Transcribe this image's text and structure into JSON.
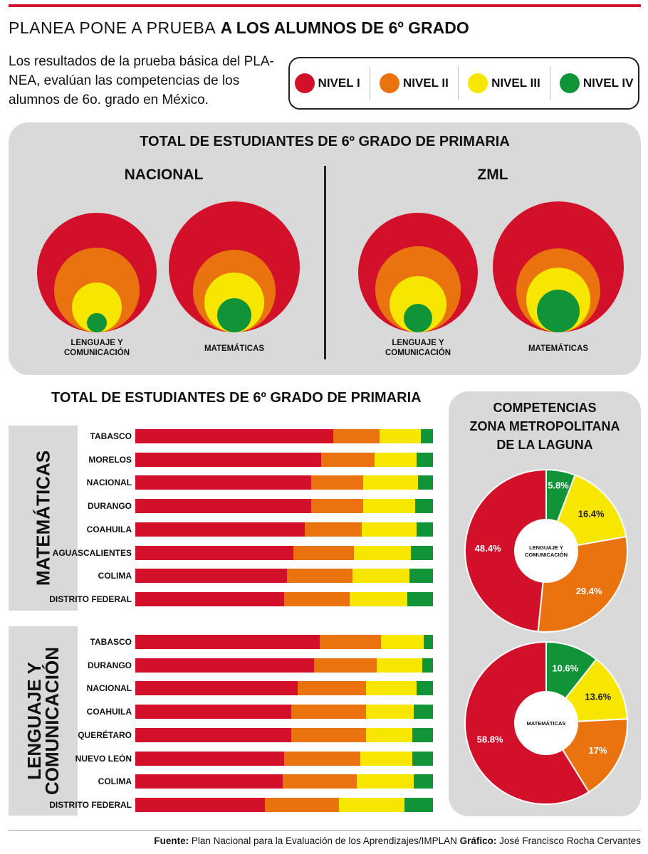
{
  "header": {
    "headline_light": "PLANEA PONE A PRUEBA",
    "headline_bold": "A LOS ALUMNOS DE 6º GRADO",
    "intro": "Los resultados  de la prueba básica del PLA-NEA, evalúan las competencias de los alumnos de 6o. grado en México."
  },
  "legend": [
    {
      "label": "NIVEL I",
      "color": "#d2102a"
    },
    {
      "label": "NIVEL II",
      "color": "#e8730f"
    },
    {
      "label": "NIVEL III",
      "color": "#f7e600"
    },
    {
      "label": "NIVEL IV",
      "color": "#119438"
    }
  ],
  "colors": {
    "nivel1": "#d2102a",
    "nivel2": "#e8730f",
    "nivel3": "#f7e600",
    "nivel4": "#119438",
    "panel": "#d9d9d9"
  },
  "circles_panel": {
    "title": "TOTAL DE ESTUDIANTES DE 6º GRADO DE PRIMARIA",
    "left_title": "NACIONAL",
    "right_title": "ZML"
  },
  "bars_panel": {
    "title": "TOTAL DE ESTUDIANTES DE 6º GRADO DE PRIMARIA",
    "matematicas_label": "MATEMÁTICAS",
    "lenguaje_label_line1": "LENGUAJE Y",
    "lenguaje_label_line2": "COMUNICACIÓN"
  },
  "donut_panel": {
    "title_line1": "COMPETENCIAS",
    "title_line2": "ZONA METROPOLITANA",
    "title_line3": "DE LA LAGUNA"
  },
  "chart_data": [
    {
      "type": "nested-circles",
      "group": "NACIONAL",
      "series_names": [
        "NIVEL I",
        "NIVEL II",
        "NIVEL III",
        "NIVEL IV"
      ],
      "items": [
        {
          "label_line1": "LENGUAJE Y",
          "label_line2": "COMUNICACIÓN",
          "values_pct": [
            49.5,
            33.2,
            14.6,
            2.6
          ]
        },
        {
          "label_line1": "MATEMÁTICAS",
          "label_line2": "",
          "values_pct": [
            60.5,
            18.9,
            13.8,
            6.8
          ]
        }
      ]
    },
    {
      "type": "nested-circles",
      "group": "ZML",
      "series_names": [
        "NIVEL I",
        "NIVEL II",
        "NIVEL III",
        "NIVEL IV"
      ],
      "items": [
        {
          "label_line1": "LENGUAJE Y",
          "label_line2": "COMUNICACIÓN",
          "values_pct": [
            48.4,
            29.4,
            16.4,
            5.8
          ]
        },
        {
          "label_line1": "MATEMÁTICAS",
          "label_line2": "",
          "values_pct": [
            58.8,
            17.0,
            13.6,
            10.6
          ]
        }
      ]
    },
    {
      "type": "bar",
      "stacked": true,
      "orientation": "horizontal",
      "subject": "MATEMÁTICAS",
      "series_names": [
        "NIVEL I",
        "NIVEL II",
        "NIVEL III",
        "NIVEL IV"
      ],
      "categories": [
        "TABASCO",
        "MORELOS",
        "NACIONAL",
        "DURANGO",
        "COAHUILA",
        "AGUASCALIENTES",
        "COLIMA",
        "DISTRITO FEDERAL"
      ],
      "values": [
        [
          66.5,
          15.5,
          14.0,
          4.0
        ],
        [
          62.5,
          18.0,
          14.0,
          5.5
        ],
        [
          59.0,
          17.5,
          18.5,
          5.0
        ],
        [
          59.0,
          17.5,
          17.5,
          6.0
        ],
        [
          57.0,
          19.0,
          18.5,
          5.5
        ],
        [
          53.0,
          20.5,
          19.0,
          7.5
        ],
        [
          51.0,
          22.0,
          19.0,
          8.0
        ],
        [
          50.0,
          22.0,
          19.5,
          8.5
        ]
      ]
    },
    {
      "type": "bar",
      "stacked": true,
      "orientation": "horizontal",
      "subject": "LENGUAJE Y COMUNICACIÓN",
      "series_names": [
        "NIVEL I",
        "NIVEL II",
        "NIVEL III",
        "NIVEL IV"
      ],
      "categories": [
        "TABASCO",
        "DURANGO",
        "NACIONAL",
        "COAHUILA",
        "QUERÉTARO",
        "NUEVO LEÓN",
        "COLIMA",
        "DISTRITO FEDERAL"
      ],
      "values": [
        [
          62.0,
          20.5,
          14.5,
          3.0
        ],
        [
          60.0,
          21.0,
          15.5,
          3.5
        ],
        [
          54.5,
          23.0,
          17.0,
          5.5
        ],
        [
          52.5,
          25.0,
          16.0,
          6.5
        ],
        [
          52.5,
          25.0,
          15.5,
          7.0
        ],
        [
          50.0,
          25.5,
          17.5,
          7.0
        ],
        [
          49.5,
          25.0,
          19.0,
          6.5
        ],
        [
          43.5,
          25.0,
          22.0,
          9.5
        ]
      ]
    },
    {
      "type": "pie",
      "donut": true,
      "center_label_line1": "LENGUAJE Y",
      "center_label_line2": "COMUNICACIÓN",
      "slices": [
        {
          "name": "NIVEL IV",
          "value": 5.8,
          "label": "5.8%"
        },
        {
          "name": "NIVEL III",
          "value": 16.4,
          "label": "16.4%"
        },
        {
          "name": "NIVEL II",
          "value": 29.4,
          "label": "29.4%"
        },
        {
          "name": "NIVEL I",
          "value": 48.4,
          "label": "48.4%"
        }
      ]
    },
    {
      "type": "pie",
      "donut": true,
      "center_label_line1": "MATEMÁTICAS",
      "center_label_line2": "",
      "slices": [
        {
          "name": "NIVEL IV",
          "value": 10.6,
          "label": "10.6%"
        },
        {
          "name": "NIVEL III",
          "value": 13.6,
          "label": "13.6%"
        },
        {
          "name": "NIVEL II",
          "value": 17,
          "label": "17%"
        },
        {
          "name": "NIVEL I",
          "value": 58.8,
          "label": "58.8%"
        }
      ]
    }
  ],
  "footer": {
    "source_label": "Fuente:",
    "source_text": "Plan Nacional para la Evaluación de los Aprendizajes/IMPLAN",
    "graphic_label": "Gráfico:",
    "graphic_text": "José Francisco Rocha Cervantes"
  }
}
